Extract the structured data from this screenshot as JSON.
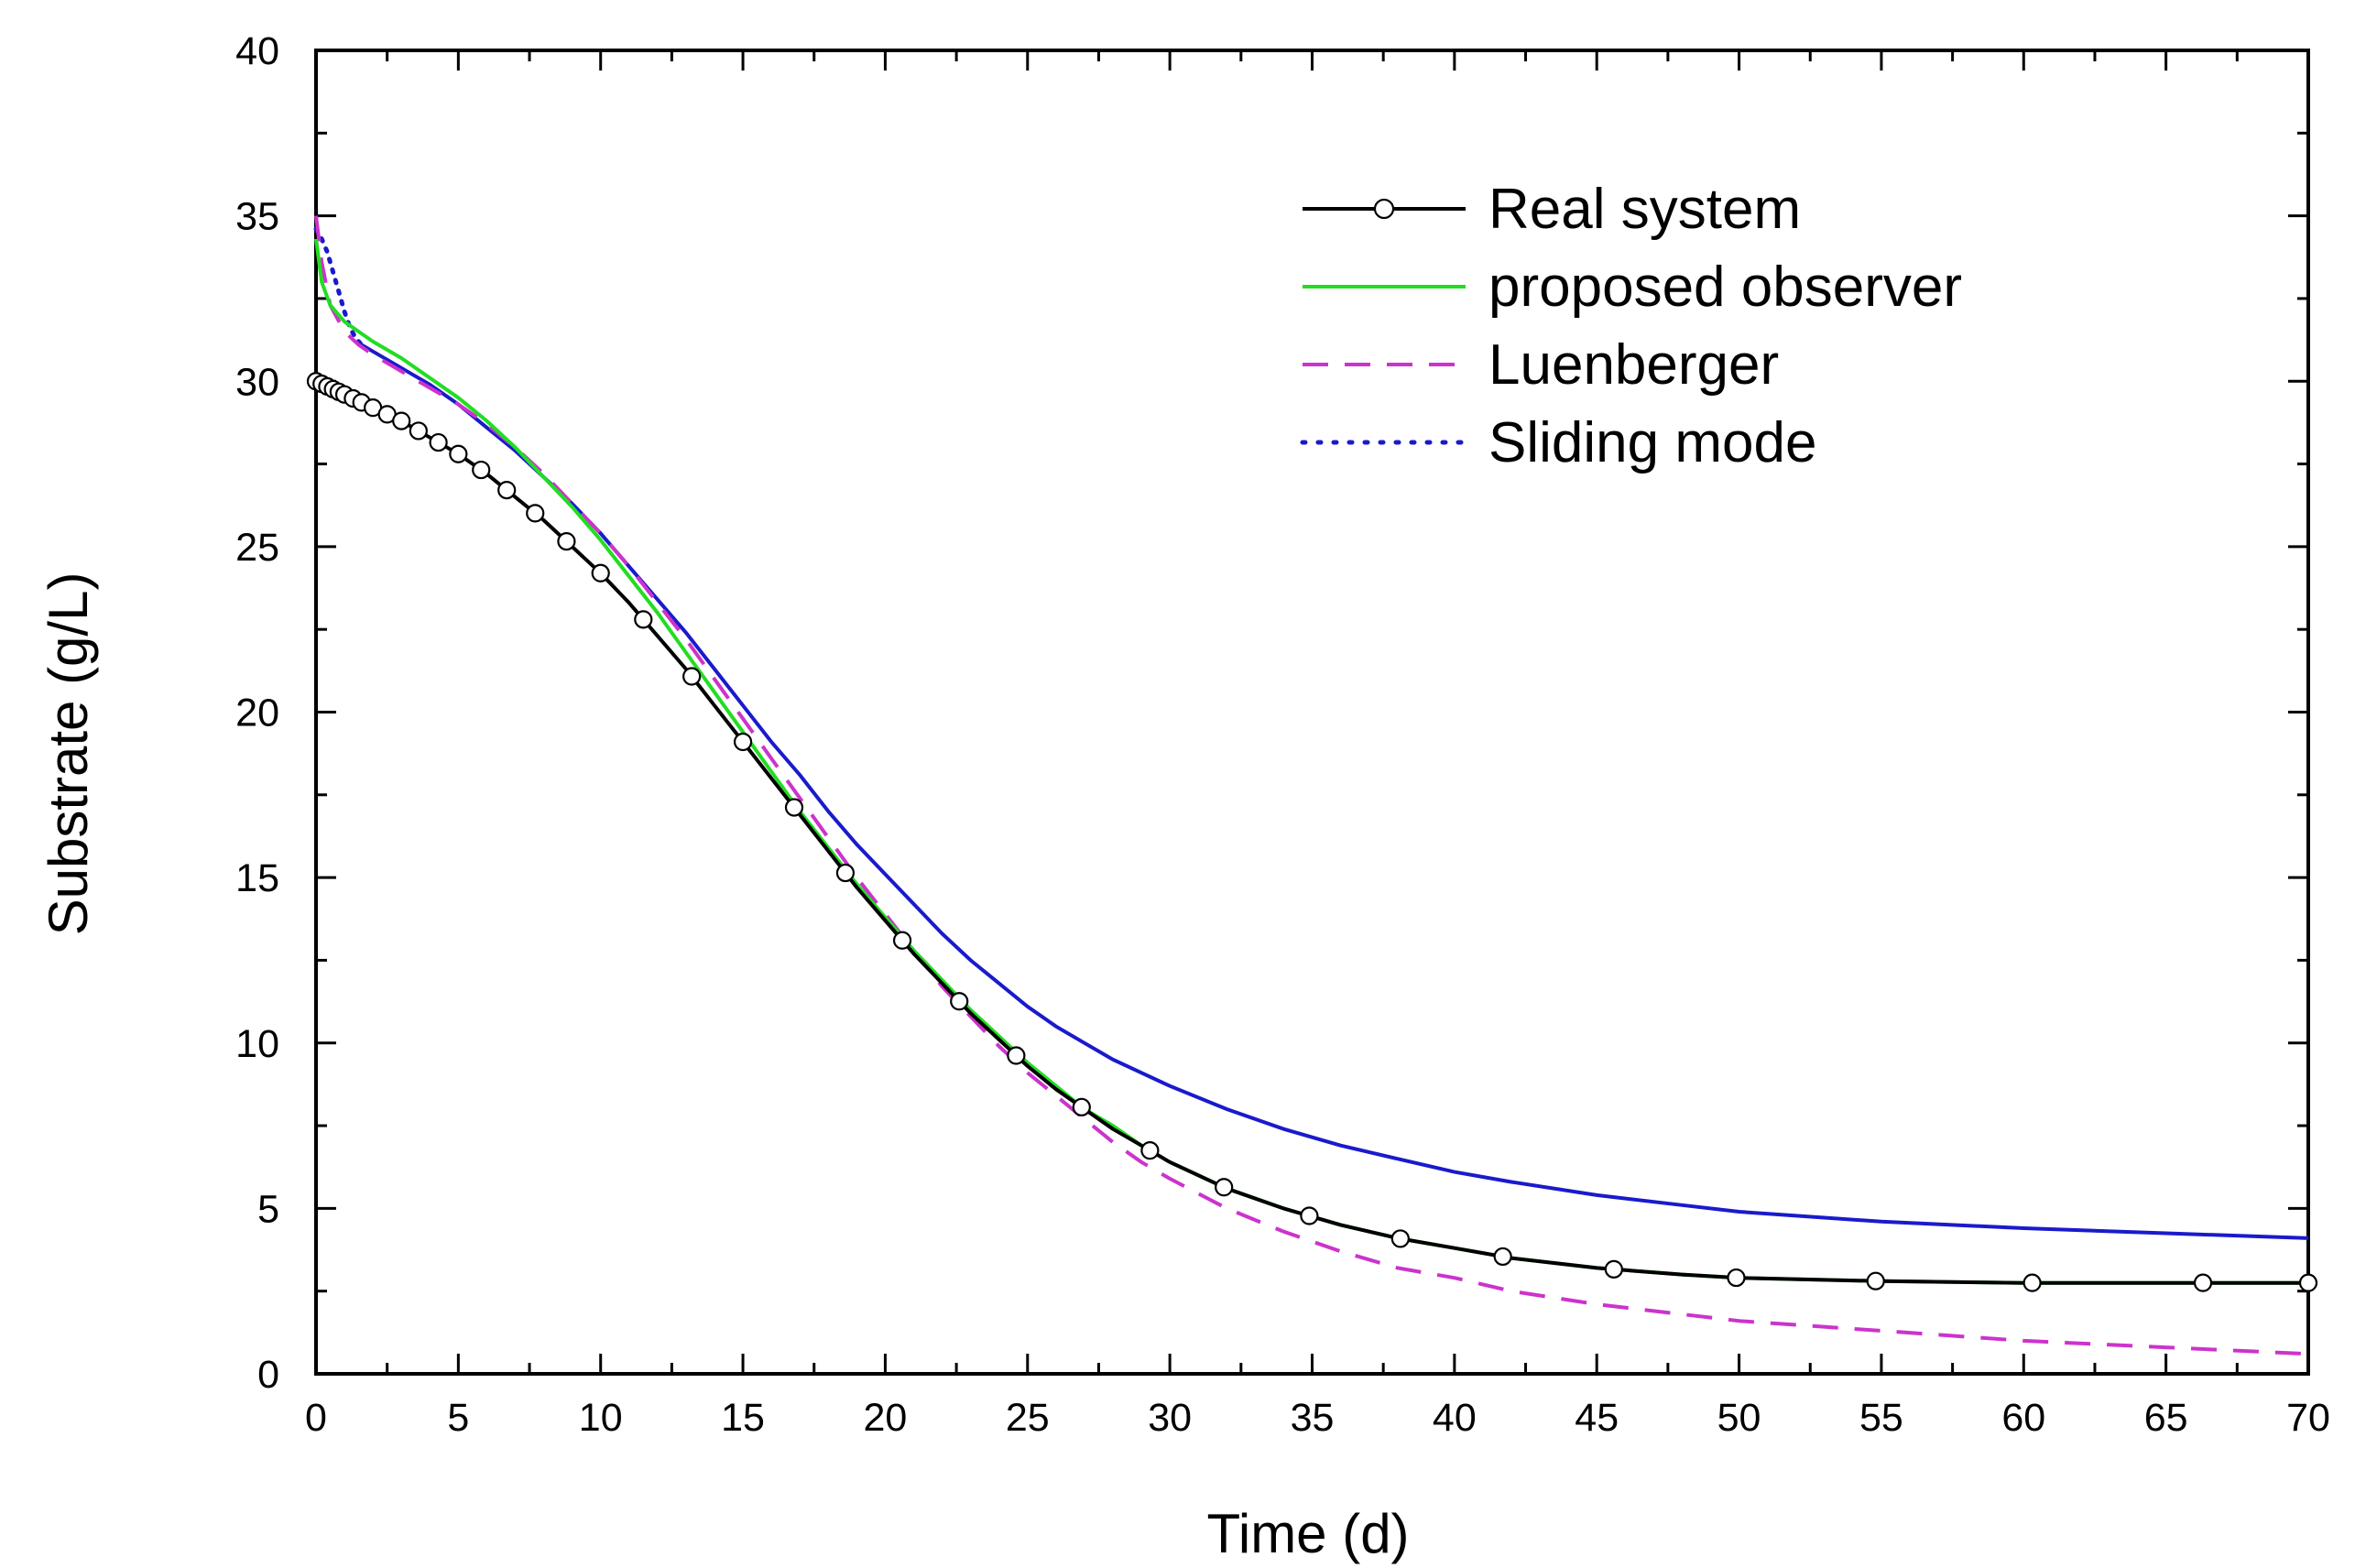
{
  "chart_data": {
    "type": "line",
    "title": "",
    "xlabel": "Time (d)",
    "ylabel": "Substrate (g/L)",
    "xlim": [
      0,
      70
    ],
    "ylim": [
      0,
      40
    ],
    "xticks": [
      0,
      5,
      10,
      15,
      20,
      25,
      30,
      35,
      40,
      45,
      50,
      55,
      60,
      65,
      70
    ],
    "yticks": [
      0,
      5,
      10,
      15,
      20,
      25,
      30,
      35,
      40
    ],
    "grid": false,
    "legend_position": "top-right",
    "series": [
      {
        "name": "Real system",
        "color": "#000000",
        "style": "solid-with-open-circles",
        "x": [
          0,
          0.5,
          1,
          1.5,
          2,
          3,
          4,
          5,
          6,
          7,
          8,
          9,
          10,
          11,
          12,
          13,
          14,
          15,
          16,
          17,
          18,
          19,
          20,
          21,
          22,
          23,
          24,
          25,
          26,
          27,
          28,
          29,
          30,
          32,
          34,
          36,
          38,
          40,
          42,
          45,
          48,
          50,
          55,
          60,
          65,
          70
        ],
        "values": [
          30,
          29.8,
          29.6,
          29.4,
          29.2,
          28.8,
          28.3,
          27.8,
          27.2,
          26.5,
          25.8,
          25.0,
          24.2,
          23.3,
          22.3,
          21.3,
          20.2,
          19.1,
          18.0,
          16.9,
          15.8,
          14.7,
          13.7,
          12.7,
          11.8,
          10.9,
          10.1,
          9.3,
          8.6,
          8.0,
          7.4,
          6.9,
          6.4,
          5.6,
          5.0,
          4.5,
          4.1,
          3.8,
          3.5,
          3.2,
          3.0,
          2.9,
          2.8,
          2.75,
          2.75,
          2.75
        ],
        "markers_x": [
          0,
          0.2,
          0.4,
          0.6,
          0.8,
          1.0,
          1.3,
          1.6,
          2.0,
          2.5,
          3.0,
          3.6,
          4.3,
          5.0,
          5.8,
          6.7,
          7.7,
          8.8,
          10.0,
          11.5,
          13.2,
          15.0,
          16.8,
          18.6,
          20.6,
          22.6,
          24.6,
          26.9,
          29.3,
          31.9,
          34.9,
          38.1,
          41.7,
          45.6,
          49.9,
          54.8,
          60.3,
          66.3,
          70
        ]
      },
      {
        "name": "proposed observer",
        "color": "#22dd22",
        "style": "solid",
        "x": [
          0,
          0.2,
          0.5,
          1,
          1.5,
          2,
          3,
          4,
          5,
          6,
          7,
          8,
          9,
          10,
          11,
          12,
          13,
          14,
          15,
          16,
          17,
          18,
          19,
          20,
          21,
          22,
          23,
          24,
          25,
          26,
          27,
          28,
          29,
          30,
          32,
          34,
          36,
          38,
          40,
          42,
          45,
          48,
          50,
          55,
          60,
          65,
          70
        ],
        "values": [
          34.3,
          33.0,
          32.3,
          31.8,
          31.5,
          31.2,
          30.7,
          30.1,
          29.5,
          28.8,
          28.0,
          27.1,
          26.2,
          25.2,
          24.1,
          23.0,
          21.8,
          20.6,
          19.4,
          18.2,
          17.0,
          15.9,
          14.8,
          13.8,
          12.8,
          11.9,
          11.0,
          10.2,
          9.4,
          8.7,
          8.0,
          7.5,
          6.9,
          6.4,
          5.6,
          5.0,
          4.5,
          4.1,
          3.8,
          3.5,
          3.2,
          3.0,
          2.9,
          2.8,
          2.75,
          2.75,
          2.75
        ]
      },
      {
        "name": "Luenberger",
        "color": "#cc33cc",
        "style": "dashed",
        "x": [
          0,
          0.2,
          0.5,
          1,
          1.5,
          2,
          3,
          4,
          5,
          6,
          7,
          8,
          9,
          10,
          11,
          12,
          13,
          14,
          15,
          16,
          17,
          18,
          19,
          20,
          21,
          22,
          23,
          24,
          25,
          26,
          27,
          28,
          29,
          30,
          32,
          34,
          36,
          38,
          40,
          42,
          45,
          48,
          50,
          55,
          60,
          65,
          70
        ],
        "values": [
          35.0,
          33.6,
          32.3,
          31.5,
          31.1,
          30.8,
          30.3,
          29.8,
          29.3,
          28.7,
          28.0,
          27.2,
          26.3,
          25.4,
          24.4,
          23.3,
          22.2,
          21.0,
          19.8,
          18.6,
          17.4,
          16.2,
          15.0,
          13.9,
          12.8,
          11.7,
          10.8,
          9.9,
          9.1,
          8.4,
          7.7,
          7.0,
          6.4,
          5.9,
          5.0,
          4.3,
          3.7,
          3.2,
          2.9,
          2.5,
          2.1,
          1.8,
          1.6,
          1.3,
          1.0,
          0.8,
          0.6
        ]
      },
      {
        "name": "Sliding mode",
        "color": "#1a1acc",
        "style": "dotted-then-solid",
        "x": [
          0,
          0.2,
          0.4,
          0.6,
          0.8,
          1.0,
          1.2,
          1.4,
          1.6,
          2,
          3,
          4,
          5,
          6,
          7,
          8,
          9,
          10,
          11,
          12,
          13,
          14,
          15,
          16,
          17,
          18,
          19,
          20,
          21,
          22,
          23,
          24,
          25,
          26,
          27,
          28,
          29,
          30,
          32,
          34,
          36,
          38,
          40,
          42,
          45,
          48,
          50,
          55,
          60,
          65,
          70
        ],
        "values": [
          34.6,
          34.3,
          33.9,
          33.3,
          32.7,
          32.1,
          31.6,
          31.3,
          31.1,
          30.9,
          30.4,
          29.9,
          29.3,
          28.6,
          27.9,
          27.1,
          26.3,
          25.4,
          24.4,
          23.4,
          22.4,
          21.3,
          20.2,
          19.1,
          18.1,
          17.0,
          16.0,
          15.1,
          14.2,
          13.3,
          12.5,
          11.8,
          11.1,
          10.5,
          10.0,
          9.5,
          9.1,
          8.7,
          8.0,
          7.4,
          6.9,
          6.5,
          6.1,
          5.8,
          5.4,
          5.1,
          4.9,
          4.6,
          4.4,
          4.25,
          4.1
        ]
      }
    ]
  }
}
